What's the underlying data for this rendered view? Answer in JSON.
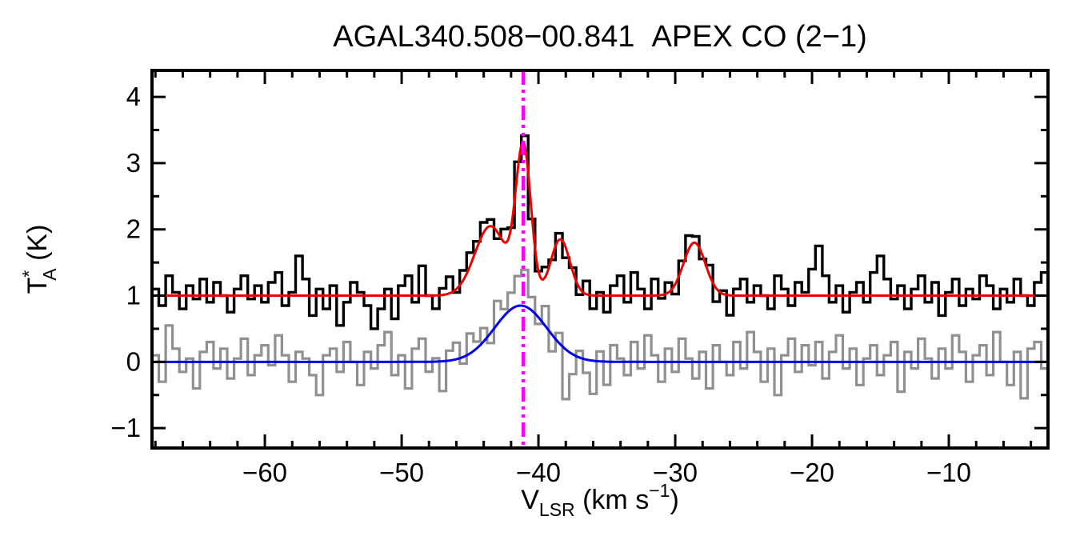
{
  "chart_data": {
    "type": "line",
    "title": "AGAL340.508−00.841  APEX CO (2−1)",
    "xlabel": "V_LSR (km s⁻¹)",
    "ylabel": "T_A* (K)",
    "xlabel_parts": [
      {
        "t": "V",
        "size": 34
      },
      {
        "t": "LSR",
        "dy": 9,
        "size": 23
      },
      {
        "t": " (km s",
        "dy": -9,
        "size": 34
      },
      {
        "t": "−1",
        "dy": -15,
        "size": 23
      },
      {
        "t": ")",
        "dy": 15,
        "size": 34
      }
    ],
    "ylabel_parts": [
      {
        "t": "T",
        "size": 34
      },
      {
        "t": "*",
        "dy": -14,
        "size": 23
      },
      {
        "t": "A",
        "dx": -13,
        "dy": 26,
        "size": 23
      },
      {
        "t": " (K)",
        "dy": -12,
        "size": 34
      }
    ],
    "xlim": [
      -68.25,
      -2.75
    ],
    "ylim": [
      -1.3,
      4.4
    ],
    "xticks": [
      -60,
      -50,
      -40,
      -30,
      -20,
      -10
    ],
    "xtick_labels": [
      "−60",
      "−50",
      "−40",
      "−30",
      "−20",
      "−10"
    ],
    "yticks": [
      -1,
      0,
      1,
      2,
      3,
      4
    ],
    "ytick_labels": [
      "−1",
      "0",
      "1",
      "2",
      "3",
      "4"
    ],
    "x_minor_step": 2,
    "y_minor_step": 0.5,
    "x_start": -68,
    "x_step": 0.5,
    "n_channels": 131,
    "vline": {
      "x": -41.1,
      "color": "#ff00ff",
      "style": "dash-dot",
      "label": "systemic-velocity-marker"
    },
    "series": [
      {
        "name": "comparison-spectrum-gray",
        "style": "histogram",
        "color": "#909090",
        "width": 3.2,
        "baseline": 0.0,
        "gaussians": [
          {
            "center": -41.3,
            "amplitude": 0.85,
            "sigma": 1.9
          }
        ],
        "noise": [
          0.1,
          -0.3,
          0.55,
          0.2,
          -0.15,
          0.05,
          -0.4,
          0.15,
          0.3,
          -0.1,
          0.2,
          -0.25,
          0.05,
          0.35,
          -0.2,
          0.1,
          0.25,
          -0.05,
          0.4,
          0.1,
          -0.3,
          0.15,
          0.05,
          -0.2,
          -0.5,
          0.1,
          0.2,
          -0.15,
          0.3,
          0.0,
          -0.35,
          0.15,
          -0.1,
          0.25,
          0.45,
          -0.2,
          0.1,
          -0.4,
          0.2,
          0.35,
          -0.15,
          0.05,
          -0.45,
          0.15,
          0.25,
          -0.1,
          0.3,
          0.1,
          0.2,
          -0.15,
          0.35,
          0.1,
          0.25,
          0.45,
          0.55,
          0.2,
          -0.1,
          0.3,
          -0.25,
          0.15,
          -0.75,
          -0.3,
          0.1,
          -0.2,
          -0.5,
          0.15,
          -0.35,
          0.25,
          0.05,
          -0.2,
          0.3,
          -0.1,
          0.4,
          0.1,
          -0.3,
          0.2,
          -0.15,
          0.35,
          0.05,
          -0.25,
          0.15,
          -0.4,
          0.25,
          0.0,
          -0.2,
          0.3,
          -0.1,
          0.45,
          0.15,
          -0.3,
          0.2,
          -0.5,
          0.1,
          0.35,
          -0.15,
          0.25,
          -0.05,
          0.3,
          -0.25,
          0.15,
          0.4,
          -0.1,
          0.2,
          -0.35,
          0.05,
          0.25,
          -0.2,
          0.1,
          0.3,
          -0.45,
          0.15,
          -0.1,
          0.35,
          0.05,
          -0.25,
          0.2,
          -0.1,
          0.4,
          0.15,
          -0.3,
          0.1,
          0.25,
          -0.2,
          0.45,
          0.0,
          -0.35,
          0.15,
          -0.55,
          0.2,
          0.3,
          -0.1
        ]
      },
      {
        "name": "blue-gaussian-fit",
        "style": "smooth",
        "color": "#0000ee",
        "width": 3.0,
        "baseline": 0.0,
        "gaussians": [
          {
            "center": -41.3,
            "amplitude": 0.85,
            "sigma": 1.9
          }
        ],
        "noise": []
      },
      {
        "name": "observed-co-spectrum-black",
        "style": "histogram",
        "color": "#000000",
        "width": 3.4,
        "baseline": 1.0,
        "gaussians": [
          {
            "center": -43.5,
            "amplitude": 1.05,
            "sigma": 1.15
          },
          {
            "center": -41.1,
            "amplitude": 2.2,
            "sigma": 0.55
          },
          {
            "center": -38.4,
            "amplitude": 0.85,
            "sigma": 0.7
          },
          {
            "center": -28.6,
            "amplitude": 0.8,
            "sigma": 0.8
          }
        ],
        "noise": [
          0.1,
          -0.15,
          0.3,
          0.05,
          -0.2,
          0.15,
          -0.05,
          0.25,
          -0.1,
          0.2,
          0.0,
          -0.25,
          0.1,
          0.3,
          -0.05,
          0.15,
          -0.1,
          0.2,
          0.35,
          -0.15,
          0.05,
          0.6,
          0.25,
          -0.3,
          0.1,
          -0.2,
          0.15,
          -0.45,
          -0.1,
          0.2,
          0.05,
          -0.15,
          -0.5,
          -0.2,
          0.1,
          -0.35,
          0.15,
          0.3,
          -0.1,
          0.45,
          0.0,
          -0.2,
          0.1,
          0.25,
          -0.05,
          0.15,
          0.2,
          0.1,
          0.15,
          0.1,
          -0.1,
          0.2,
          0.0,
          0.1,
          0.15,
          -0.1,
          0.0,
          0.15,
          -0.05,
          0.1,
          -0.15,
          0.05,
          -0.1,
          0.2,
          -0.2,
          0.05,
          -0.25,
          0.15,
          0.3,
          -0.1,
          0.35,
          0.1,
          -0.2,
          0.25,
          -0.05,
          0.15,
          -0.15,
          0.1,
          0.2,
          0.1,
          -0.05,
          0.15,
          -0.2,
          0.05,
          -0.3,
          0.1,
          0.25,
          -0.1,
          0.15,
          0.0,
          -0.2,
          0.3,
          0.1,
          -0.15,
          0.2,
          0.05,
          0.4,
          0.75,
          0.3,
          -0.1,
          0.15,
          -0.25,
          0.05,
          0.2,
          -0.1,
          0.35,
          0.6,
          0.25,
          -0.05,
          0.15,
          -0.2,
          0.1,
          0.3,
          -0.1,
          0.2,
          -0.3,
          0.05,
          0.25,
          -0.15,
          0.1,
          -0.05,
          0.3,
          0.15,
          -0.2,
          0.1,
          -0.1,
          0.25,
          0.0,
          -0.15,
          0.2,
          0.35
        ]
      },
      {
        "name": "red-gaussian-fit",
        "style": "smooth",
        "color": "#ee0000",
        "width": 3.0,
        "baseline": 1.0,
        "gaussians": [
          {
            "center": -43.5,
            "amplitude": 1.05,
            "sigma": 1.15
          },
          {
            "center": -41.1,
            "amplitude": 2.2,
            "sigma": 0.55
          },
          {
            "center": -38.4,
            "amplitude": 0.85,
            "sigma": 0.7
          },
          {
            "center": -28.6,
            "amplitude": 0.8,
            "sigma": 0.8
          }
        ],
        "noise": []
      }
    ]
  }
}
